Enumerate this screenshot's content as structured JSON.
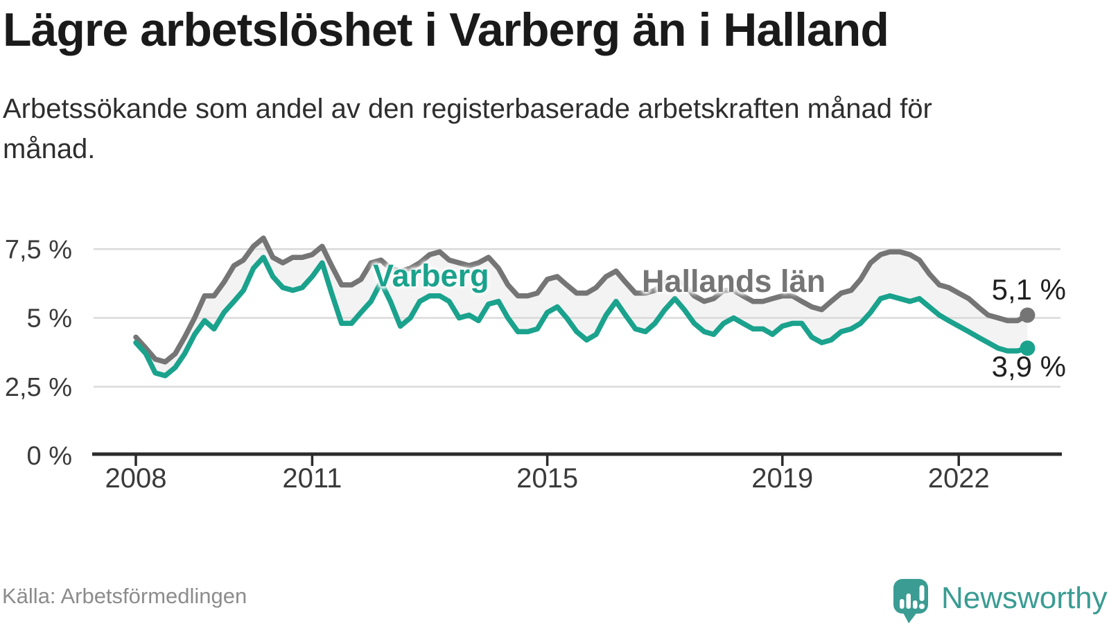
{
  "header": {
    "title": "Lägre arbetslöshet i Varberg än i Halland",
    "subtitle": "Arbetssökande som andel av den registerbaserade arbetskraften månad för månad."
  },
  "footer": {
    "source": "Källa: Arbetsförmedlingen",
    "brand": "Newsworthy"
  },
  "colors": {
    "varberg_teal": "#1AA28D",
    "halland_gray": "#757575",
    "band_fill": "#F3F3F3",
    "grid": "#DADADA",
    "axis": "#2B2B2B",
    "tick_text": "#3A3A3A",
    "title_text": "#1A1A1A",
    "source_text": "#8C8C8C",
    "brand_teal": "#3A9C93"
  },
  "chart_data": {
    "type": "line",
    "title": "Lägre arbetslöshet i Varberg än i Halland",
    "xlabel": "",
    "ylabel": "",
    "ylim": [
      0,
      8.3
    ],
    "x_range_years": [
      2007.3,
      2023.8
    ],
    "grid": "horizontal",
    "legend_position": "inline-labels-on-lines",
    "band_between_series": true,
    "x": [
      2008,
      2008.17,
      2008.33,
      2008.5,
      2008.67,
      2008.83,
      2009,
      2009.17,
      2009.33,
      2009.5,
      2009.67,
      2009.83,
      2010,
      2010.17,
      2010.33,
      2010.5,
      2010.67,
      2010.83,
      2011,
      2011.17,
      2011.33,
      2011.5,
      2011.67,
      2011.83,
      2012,
      2012.17,
      2012.33,
      2012.5,
      2012.67,
      2012.83,
      2013,
      2013.17,
      2013.33,
      2013.5,
      2013.67,
      2013.83,
      2014,
      2014.17,
      2014.33,
      2014.5,
      2014.67,
      2014.83,
      2015,
      2015.17,
      2015.33,
      2015.5,
      2015.67,
      2015.83,
      2016,
      2016.17,
      2016.33,
      2016.5,
      2016.67,
      2016.83,
      2017,
      2017.17,
      2017.33,
      2017.5,
      2017.67,
      2017.83,
      2018,
      2018.17,
      2018.33,
      2018.5,
      2018.67,
      2018.83,
      2019,
      2019.17,
      2019.33,
      2019.5,
      2019.67,
      2019.83,
      2020,
      2020.17,
      2020.33,
      2020.5,
      2020.67,
      2020.83,
      2021,
      2021.17,
      2021.33,
      2021.5,
      2021.67,
      2021.83,
      2022,
      2022.17,
      2022.33,
      2022.5,
      2022.67,
      2022.83,
      2023,
      2023.17
    ],
    "series": [
      {
        "name": "Hallands län",
        "color": "#757575",
        "end_label": "5,1 %",
        "end_value": 5.1,
        "values": [
          4.3,
          3.9,
          3.5,
          3.4,
          3.7,
          4.3,
          5.0,
          5.8,
          5.8,
          6.3,
          6.9,
          7.1,
          7.6,
          7.9,
          7.2,
          7.0,
          7.2,
          7.2,
          7.3,
          7.6,
          6.9,
          6.2,
          6.2,
          6.4,
          7.0,
          7.1,
          6.8,
          6.7,
          6.8,
          7.0,
          7.3,
          7.4,
          7.1,
          7.0,
          6.9,
          7.0,
          7.2,
          6.8,
          6.2,
          5.8,
          5.8,
          5.9,
          6.4,
          6.5,
          6.2,
          5.9,
          5.9,
          6.1,
          6.5,
          6.7,
          6.3,
          5.9,
          5.9,
          6.0,
          6.3,
          6.4,
          6.2,
          5.8,
          5.6,
          5.7,
          6.0,
          6.0,
          5.8,
          5.6,
          5.6,
          5.7,
          5.8,
          5.8,
          5.6,
          5.4,
          5.3,
          5.6,
          5.9,
          6.0,
          6.4,
          7.0,
          7.3,
          7.4,
          7.4,
          7.3,
          7.1,
          6.6,
          6.2,
          6.1,
          5.9,
          5.7,
          5.4,
          5.1,
          5.0,
          4.9,
          4.9,
          5.1
        ]
      },
      {
        "name": "Varberg",
        "color": "#1AA28D",
        "end_label": "3,9 %",
        "end_value": 3.9,
        "values": [
          4.1,
          3.7,
          3.0,
          2.9,
          3.2,
          3.7,
          4.4,
          4.9,
          4.6,
          5.2,
          5.6,
          6.0,
          6.8,
          7.2,
          6.5,
          6.1,
          6.0,
          6.1,
          6.5,
          7.0,
          5.9,
          4.8,
          4.8,
          5.2,
          5.6,
          6.3,
          5.6,
          4.7,
          5.0,
          5.6,
          5.8,
          5.8,
          5.6,
          5.0,
          5.1,
          4.9,
          5.5,
          5.6,
          5.0,
          4.5,
          4.5,
          4.6,
          5.2,
          5.4,
          5.0,
          4.5,
          4.2,
          4.4,
          5.1,
          5.6,
          5.1,
          4.6,
          4.5,
          4.8,
          5.3,
          5.7,
          5.3,
          4.8,
          4.5,
          4.4,
          4.8,
          5.0,
          4.8,
          4.6,
          4.6,
          4.4,
          4.7,
          4.8,
          4.8,
          4.3,
          4.1,
          4.2,
          4.5,
          4.6,
          4.8,
          5.2,
          5.7,
          5.8,
          5.7,
          5.6,
          5.7,
          5.4,
          5.1,
          4.9,
          4.7,
          4.5,
          4.3,
          4.1,
          3.9,
          3.8,
          3.8,
          3.9
        ]
      }
    ],
    "y_ticks": [
      {
        "value": 0,
        "label": "0 %"
      },
      {
        "value": 2.5,
        "label": "2,5 %"
      },
      {
        "value": 5,
        "label": "5 %"
      },
      {
        "value": 7.5,
        "label": "7,5 %"
      }
    ],
    "x_ticks": [
      {
        "value": 2008,
        "label": "2008"
      },
      {
        "value": 2011,
        "label": "2011"
      },
      {
        "value": 2015,
        "label": "2015"
      },
      {
        "value": 2019,
        "label": "2019"
      },
      {
        "value": 2022,
        "label": "2022"
      }
    ]
  }
}
